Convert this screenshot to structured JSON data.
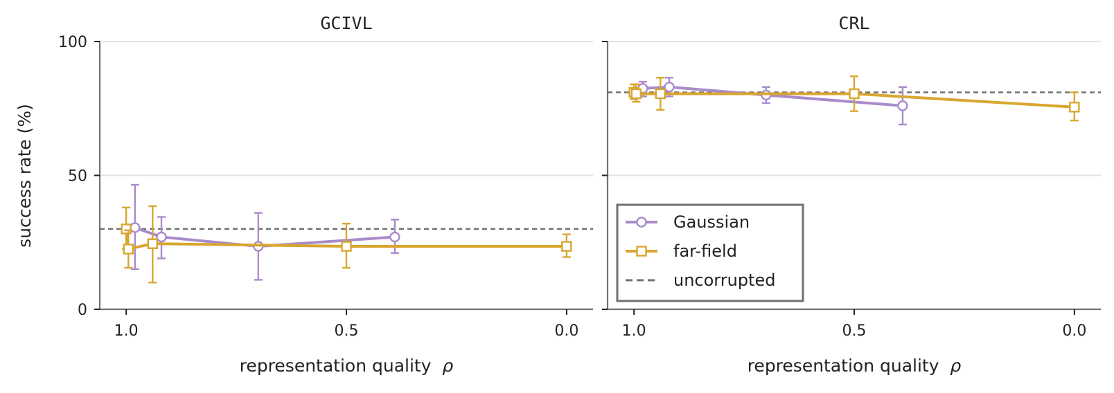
{
  "chart_data": [
    {
      "type": "line",
      "title": "GCIVL",
      "xlabel": "representation quality",
      "xlabel_symbol": "ρ",
      "ylabel": "success rate (%)",
      "xlim": [
        1.06,
        -0.06
      ],
      "ylim": [
        0,
        100
      ],
      "xticks": [
        1.0,
        0.5,
        0.0
      ],
      "xtick_labels": [
        "1.0",
        "0.5",
        "0.0"
      ],
      "yticks": [
        0,
        50,
        100
      ],
      "ytick_labels": [
        "0",
        "50",
        "100"
      ],
      "grid": "horizontal",
      "baseline": {
        "name": "uncorrupted",
        "value": 30,
        "style": "dashed",
        "color": "#707070"
      },
      "series": [
        {
          "name": "Gaussian",
          "color": "#A98BCB",
          "marker": "circle",
          "points": [
            {
              "x": 0.98,
              "y": 30.5,
              "err_low": 15,
              "err_high": 46.5
            },
            {
              "x": 0.92,
              "y": 27,
              "err_low": 19,
              "err_high": 34.5
            },
            {
              "x": 0.7,
              "y": 23.5,
              "err_low": 11,
              "err_high": 36
            },
            {
              "x": 0.39,
              "y": 27,
              "err_low": 21,
              "err_high": 33.5
            }
          ]
        },
        {
          "name": "far-field",
          "color": "#D8A630",
          "marker": "square",
          "points": [
            {
              "x": 1.0,
              "y": 30,
              "err_low": 22.5,
              "err_high": 38
            },
            {
              "x": 0.995,
              "y": 22.5,
              "err_low": 15.5,
              "err_high": 29.5
            },
            {
              "x": 0.94,
              "y": 24.5,
              "err_low": 10,
              "err_high": 38.5
            },
            {
              "x": 0.5,
              "y": 23.5,
              "err_low": 15.5,
              "err_high": 32
            },
            {
              "x": 0.0,
              "y": 23.5,
              "err_low": 19.5,
              "err_high": 28
            }
          ]
        }
      ]
    },
    {
      "type": "line",
      "title": "CRL",
      "xlabel": "representation quality",
      "xlabel_symbol": "ρ",
      "xlim": [
        1.06,
        -0.06
      ],
      "ylim": [
        0,
        100
      ],
      "xticks": [
        1.0,
        0.5,
        0.0
      ],
      "xtick_labels": [
        "1.0",
        "0.5",
        "0.0"
      ],
      "yticks": [
        0,
        50,
        100
      ],
      "grid": "horizontal",
      "baseline": {
        "name": "uncorrupted",
        "value": 81,
        "style": "dashed",
        "color": "#707070"
      },
      "series": [
        {
          "name": "Gaussian",
          "color": "#A98BCB",
          "marker": "circle",
          "points": [
            {
              "x": 0.98,
              "y": 82.5,
              "err_low": 79.5,
              "err_high": 85
            },
            {
              "x": 0.92,
              "y": 83,
              "err_low": 79.5,
              "err_high": 86.5
            },
            {
              "x": 0.7,
              "y": 80,
              "err_low": 77,
              "err_high": 83
            },
            {
              "x": 0.39,
              "y": 76,
              "err_low": 69,
              "err_high": 83
            }
          ]
        },
        {
          "name": "far-field",
          "color": "#D8A630",
          "marker": "square",
          "points": [
            {
              "x": 1.0,
              "y": 81,
              "err_low": 78.5,
              "err_high": 84
            },
            {
              "x": 0.995,
              "y": 80.5,
              "err_low": 77.5,
              "err_high": 84
            },
            {
              "x": 0.94,
              "y": 80.5,
              "err_low": 74.5,
              "err_high": 86.5
            },
            {
              "x": 0.5,
              "y": 80.5,
              "err_low": 74,
              "err_high": 87
            },
            {
              "x": 0.0,
              "y": 75.5,
              "err_low": 70.5,
              "err_high": 81
            }
          ]
        }
      ]
    }
  ],
  "legend": {
    "placement": "lower-left of right panel",
    "entries": [
      {
        "label": "Gaussian",
        "color": "#A98BCB",
        "marker": "circle",
        "line": "solid"
      },
      {
        "label": "far-field",
        "color": "#D8A630",
        "marker": "square",
        "line": "solid"
      },
      {
        "label": "uncorrupted",
        "color": "#707070",
        "marker": "none",
        "line": "dashed"
      }
    ]
  }
}
